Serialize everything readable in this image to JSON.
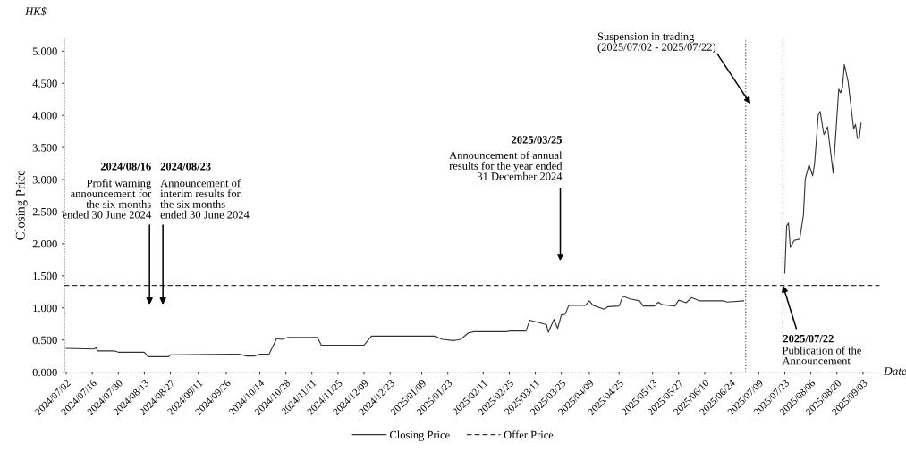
{
  "chart_data": {
    "type": "line",
    "ylabel": "Closing Price",
    "subtitle": "HK$",
    "xlabel": "Date",
    "x": [
      "2024-07-02",
      "2024-07-17",
      "2024-07-18",
      "2024-07-19",
      "2024-07-28",
      "2024-07-30",
      "2024-08-13",
      "2024-08-15",
      "2024-08-26",
      "2024-08-27",
      "2024-10-03",
      "2024-10-07",
      "2024-10-11",
      "2024-10-14",
      "2024-10-19",
      "2024-10-23",
      "2024-10-26",
      "2024-10-29",
      "2024-11-14",
      "2024-11-16",
      "2024-12-09",
      "2024-12-13",
      "2025-01-16",
      "2025-01-20",
      "2025-01-26",
      "2025-01-30",
      "2025-02-03",
      "2025-02-06",
      "2025-02-24",
      "2025-02-25",
      "2025-03-06",
      "2025-03-08",
      "2025-03-17",
      "2025-03-18",
      "2025-03-21",
      "2025-03-23",
      "2025-03-25",
      "2025-03-27",
      "2025-03-29",
      "2025-04-07",
      "2025-04-09",
      "2025-04-11",
      "2025-04-17",
      "2025-04-19",
      "2025-04-25",
      "2025-04-27",
      "2025-04-28",
      "2025-05-01",
      "2025-05-06",
      "2025-05-08",
      "2025-05-14",
      "2025-05-16",
      "2025-05-18",
      "2025-05-25",
      "2025-05-27",
      "2025-05-29",
      "2025-05-31",
      "2025-06-03",
      "2025-06-07",
      "2025-06-20",
      "2025-06-22",
      "2025-07-01",
      "2025-07-10",
      "2025-07-23",
      "2025-07-24",
      "2025-07-25",
      "2025-07-26",
      "2025-07-28",
      "2025-07-31",
      "2025-08-02",
      "2025-08-03",
      "2025-08-05",
      "2025-08-07",
      "2025-08-08",
      "2025-08-10",
      "2025-08-11",
      "2025-08-13",
      "2025-08-15",
      "2025-08-18",
      "2025-08-21",
      "2025-08-22",
      "2025-08-23",
      "2025-08-24",
      "2025-08-26",
      "2025-08-29",
      "2025-08-30",
      "2025-08-31",
      "2025-09-01",
      "2025-09-02"
    ],
    "series": [
      {
        "name": "Closing Price",
        "color": "#333333",
        "values": [
          0.37,
          0.36,
          0.38,
          0.33,
          0.33,
          0.31,
          0.31,
          0.24,
          0.24,
          0.27,
          0.28,
          0.25,
          0.25,
          0.28,
          0.28,
          0.52,
          0.51,
          0.54,
          0.54,
          0.42,
          0.42,
          0.56,
          0.56,
          0.51,
          0.49,
          0.51,
          0.61,
          0.63,
          0.63,
          0.64,
          0.64,
          0.81,
          0.74,
          0.62,
          0.82,
          0.68,
          0.89,
          0.9,
          1.04,
          1.04,
          1.11,
          1.04,
          0.98,
          1.02,
          1.03,
          1.18,
          1.17,
          1.14,
          1.11,
          1.03,
          1.03,
          1.09,
          1.05,
          1.03,
          1.12,
          1.1,
          1.08,
          1.16,
          1.11,
          1.11,
          1.09,
          1.11,
          null,
          1.54,
          2.28,
          2.32,
          1.94,
          2.05,
          2.07,
          2.44,
          3.01,
          3.23,
          3.06,
          3.24,
          4.01,
          4.06,
          3.7,
          3.82,
          3.1,
          4.41,
          4.35,
          4.44,
          4.79,
          4.53,
          3.79,
          3.86,
          3.64,
          3.64,
          3.88
        ]
      }
    ],
    "xlim": [
      "2024-07-01",
      "2025-09-12"
    ],
    "xticks": [
      {
        "value": "2024-07-02",
        "label": "2024/07/02"
      },
      {
        "value": "2024-07-16",
        "label": "2024/07/16"
      },
      {
        "value": "2024-07-30",
        "label": "2024/07/30"
      },
      {
        "value": "2024-08-13",
        "label": "2024/08/13"
      },
      {
        "value": "2024-08-27",
        "label": "2024/08/27"
      },
      {
        "value": "2024-09-11",
        "label": "2024/09/11"
      },
      {
        "value": "2024-09-26",
        "label": "2024/09/26"
      },
      {
        "value": "2024-10-14",
        "label": "2024/10/14"
      },
      {
        "value": "2024-10-28",
        "label": "2024/10/28"
      },
      {
        "value": "2024-11-11",
        "label": "2024/11/11"
      },
      {
        "value": "2024-11-25",
        "label": "2024/11/25"
      },
      {
        "value": "2024-12-09",
        "label": "2024/12/09"
      },
      {
        "value": "2024-12-23",
        "label": "2024/12/23"
      },
      {
        "value": "2025-01-09",
        "label": "2025/01/09"
      },
      {
        "value": "2025-01-23",
        "label": "2025/01/23"
      },
      {
        "value": "2025-02-11",
        "label": "2025/02/11"
      },
      {
        "value": "2025-02-25",
        "label": "2025/02/25"
      },
      {
        "value": "2025-03-11",
        "label": "2025/03/11"
      },
      {
        "value": "2025-03-25",
        "label": "2025/03/25"
      },
      {
        "value": "2025-04-09",
        "label": "2025/04/09"
      },
      {
        "value": "2025-04-25",
        "label": "2025/04/25"
      },
      {
        "value": "2025-05-13",
        "label": "2025/05/13"
      },
      {
        "value": "2025-05-27",
        "label": "2025/05/27"
      },
      {
        "value": "2025-06-10",
        "label": "2025/06/10"
      },
      {
        "value": "2025-06-24",
        "label": "2025/06/24"
      },
      {
        "value": "2025-07-09",
        "label": "2025/07/09"
      },
      {
        "value": "2025-07-23",
        "label": "2025/07/23"
      },
      {
        "value": "2025-08-06",
        "label": "2025/08/06"
      },
      {
        "value": "2025-08-20",
        "label": "2025/08/20"
      },
      {
        "value": "2025-09-03",
        "label": "2025/09/03"
      }
    ],
    "ylim": [
      0,
      5.2
    ],
    "yticks": [
      {
        "value": 0,
        "label": "0.000"
      },
      {
        "value": 0.5,
        "label": "0.500"
      },
      {
        "value": 1,
        "label": "1.000"
      },
      {
        "value": 1.5,
        "label": "1.500"
      },
      {
        "value": 2,
        "label": "2.000"
      },
      {
        "value": 2.5,
        "label": "2.500"
      },
      {
        "value": 3,
        "label": "3.000"
      },
      {
        "value": 3.5,
        "label": "3.500"
      },
      {
        "value": 4,
        "label": "4.000"
      },
      {
        "value": 4.5,
        "label": "4.500"
      },
      {
        "value": 5,
        "label": "5.000"
      }
    ],
    "ref_lines": [
      {
        "axis": "y",
        "value": 1.35,
        "label": "Offer Price",
        "color": "#333333",
        "line_style": "dashed"
      },
      {
        "axis": "x",
        "value": "2025-07-02",
        "color": "#333333",
        "line_style": "dotted"
      },
      {
        "axis": "x",
        "value": "2025-07-22",
        "color": "#333333",
        "line_style": "dotted"
      }
    ],
    "annotations": [
      "2024/08/16",
      "Profit warning\nannouncement for\nthe six months\nended 30 June 2024",
      "2024/08/23",
      "Announcement of\ninterim results for\nthe six months\nended 30 June 2024",
      "2025/03/25",
      "Announcement of annual\nresults for the year ended\n31 December 2024",
      "Suspension in trading\n(2025/07/02 - 2025/07/22)",
      {
        "text": "2025/07/22",
        "x": "2025-07-22",
        "y": 1.35
      },
      "Publication of the\nAnnouncement"
    ],
    "legend": "bottom",
    "grid": false,
    "line_style": "solid",
    "marker": "none"
  }
}
